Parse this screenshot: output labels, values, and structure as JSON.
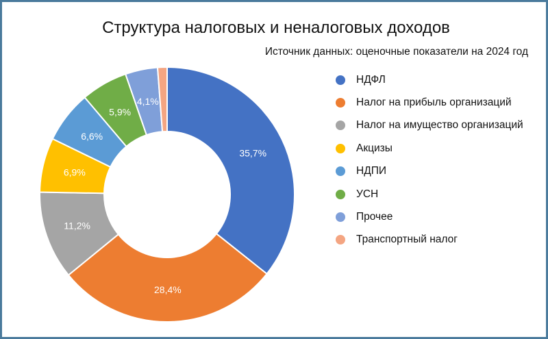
{
  "chart_data": {
    "type": "pie",
    "variant": "donut",
    "title": "Структура налоговых и неналоговых доходов",
    "subtitle": "Источник данных: оценочные показатели на 2024 год",
    "legend_position": "right",
    "categories": [
      "НДФЛ",
      "Налог на прибыль организаций",
      "Налог на имущество организаций",
      "Акцизы",
      "НДПИ",
      "УСН",
      "Прочее",
      "Транспортный налог"
    ],
    "values": [
      35.7,
      28.4,
      11.2,
      6.9,
      6.6,
      5.9,
      4.1,
      1.2
    ],
    "labels": [
      "35,7%",
      "28,4%",
      "11,2%",
      "6,9%",
      "6,6%",
      "5,9%",
      "4,1%",
      ""
    ],
    "colors": [
      "#4472c4",
      "#ed7d31",
      "#a5a5a5",
      "#ffc000",
      "#5b9bd5",
      "#70ad47",
      "#7f9fd9",
      "#f4a582"
    ]
  }
}
